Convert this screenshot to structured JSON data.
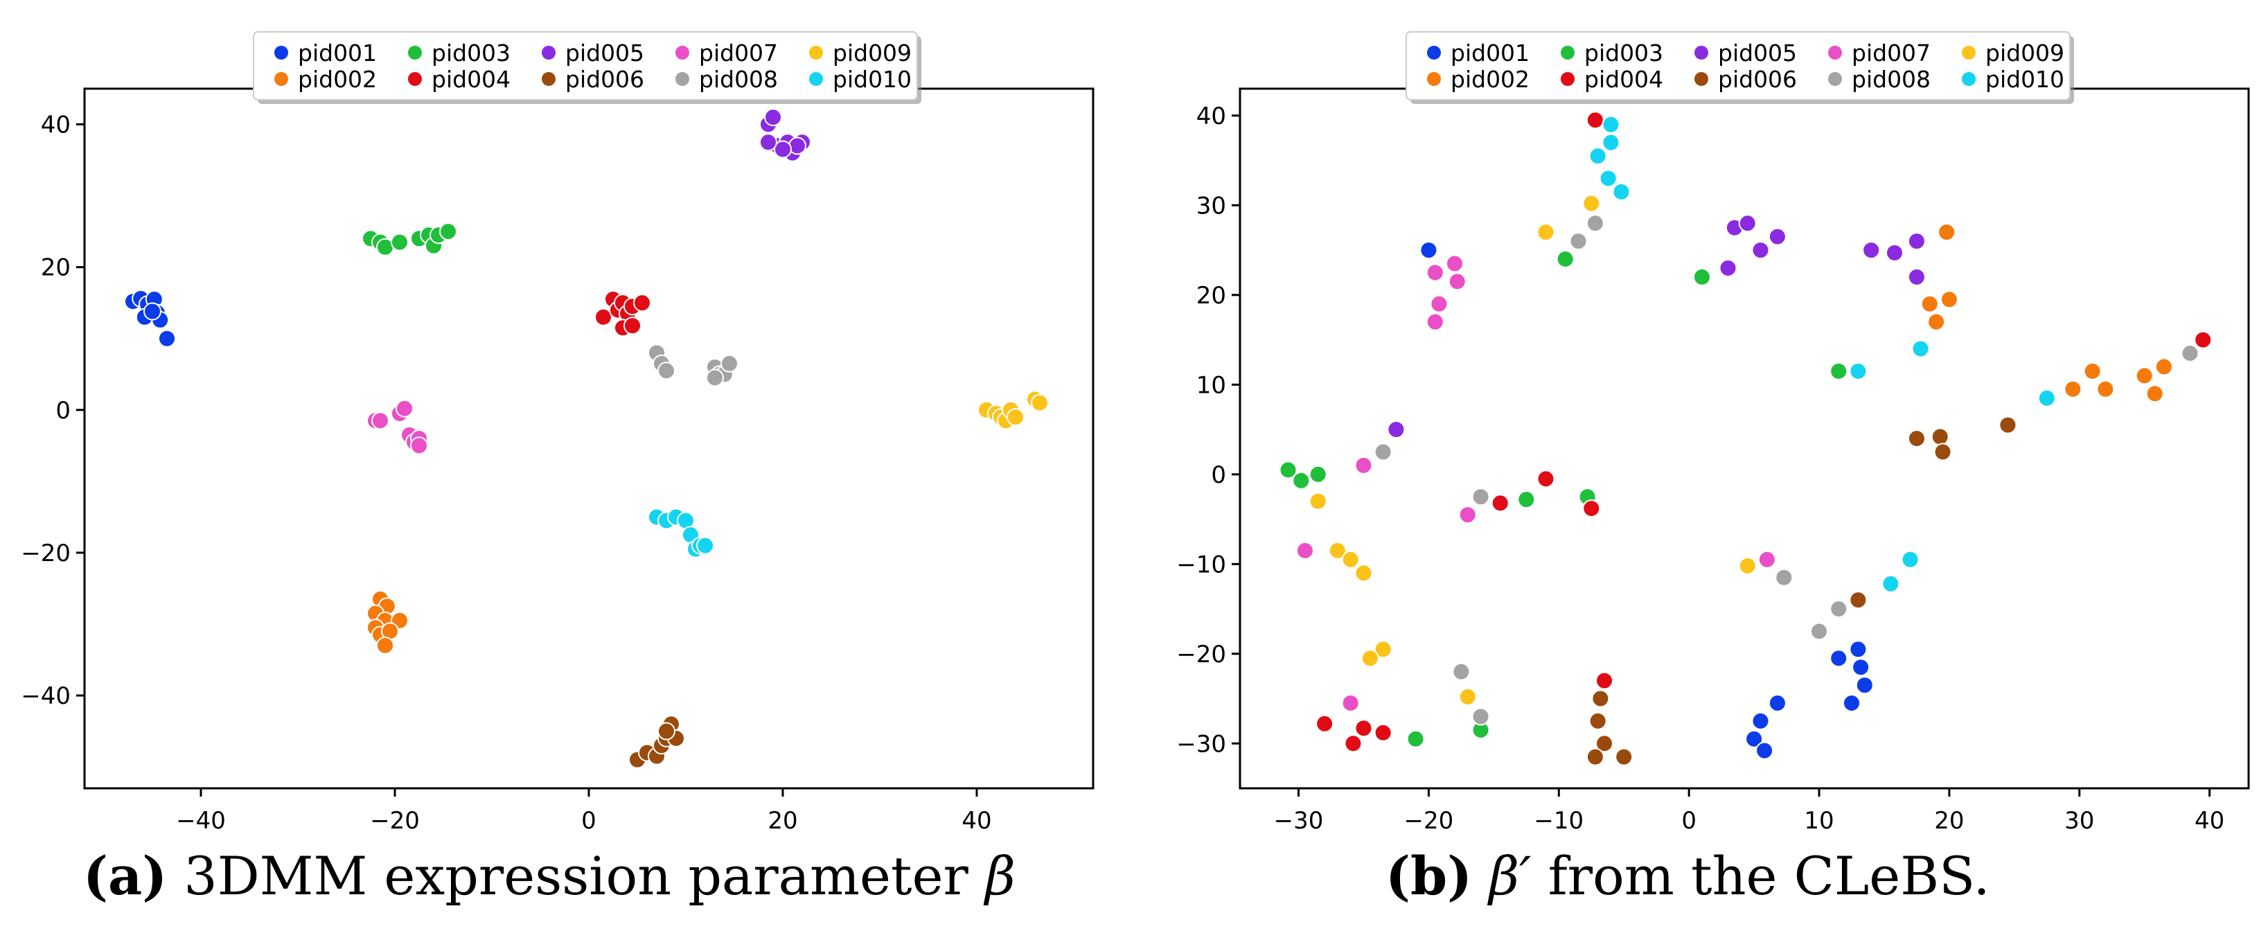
{
  "legend_entries": [
    "pid001",
    "pid002",
    "pid003",
    "pid004",
    "pid005",
    "pid006",
    "pid007",
    "pid008",
    "pid009",
    "pid010"
  ],
  "colors": {
    "pid001": "#0b3ce8",
    "pid002": "#f47a0c",
    "pid003": "#1fbf3a",
    "pid004": "#e00b14",
    "pid005": "#8a2be2",
    "pid006": "#9a4a0c",
    "pid007": "#ea4fc7",
    "pid008": "#a3a3a3",
    "pid009": "#fbc31a",
    "pid010": "#14d4f2"
  },
  "captions": {
    "a": {
      "tag": "(a)",
      "text": "3DMM expression parameter ",
      "symbol": "β"
    },
    "b": {
      "tag": "(b)",
      "symbol": "β′",
      "text": " from the CLeBS."
    }
  },
  "chart_data": [
    {
      "type": "scatter",
      "title": "",
      "xlabel": "",
      "ylabel": "",
      "xlim": [
        -52,
        52
      ],
      "ylim": [
        -53,
        45
      ],
      "xticks": [
        -40,
        -20,
        0,
        20,
        40
      ],
      "yticks": [
        -40,
        -20,
        0,
        20,
        40
      ],
      "legend_position": "top-center",
      "grid": false,
      "series": [
        {
          "name": "pid001",
          "points": [
            [
              -47,
              15.2
            ],
            [
              -46.2,
              15.6
            ],
            [
              -45.5,
              14.8
            ],
            [
              -44.8,
              15.5
            ],
            [
              -45.8,
              13
            ],
            [
              -44.5,
              13.6
            ],
            [
              -44.2,
              12.6
            ],
            [
              -43.5,
              10
            ],
            [
              -45,
              13.8
            ]
          ]
        },
        {
          "name": "pid002",
          "points": [
            [
              -21.5,
              -26.5
            ],
            [
              -20.8,
              -27.5
            ],
            [
              -22,
              -28.5
            ],
            [
              -21,
              -29.5
            ],
            [
              -19.5,
              -29.5
            ],
            [
              -22,
              -30.5
            ],
            [
              -21.5,
              -31.5
            ],
            [
              -20.5,
              -31
            ],
            [
              -21,
              -33
            ]
          ]
        },
        {
          "name": "pid003",
          "points": [
            [
              -22.5,
              24
            ],
            [
              -21.5,
              23.5
            ],
            [
              -21,
              22.8
            ],
            [
              -19.5,
              23.5
            ],
            [
              -17.5,
              24
            ],
            [
              -16.5,
              24.5
            ],
            [
              -16,
              23
            ],
            [
              -15.5,
              24.5
            ],
            [
              -14.5,
              25
            ]
          ]
        },
        {
          "name": "pid004",
          "points": [
            [
              1.5,
              13
            ],
            [
              2.5,
              15.5
            ],
            [
              3,
              14
            ],
            [
              3.5,
              15
            ],
            [
              4,
              13.5
            ],
            [
              4.5,
              14.5
            ],
            [
              5.5,
              15
            ],
            [
              3.5,
              11.5
            ],
            [
              4.5,
              11.8
            ]
          ]
        },
        {
          "name": "pid005",
          "points": [
            [
              18.5,
              40
            ],
            [
              19,
              41
            ],
            [
              19.5,
              37
            ],
            [
              20.5,
              37.5
            ],
            [
              21,
              36
            ],
            [
              22,
              37.5
            ],
            [
              21.5,
              37
            ],
            [
              20,
              36.5
            ],
            [
              18.5,
              37.5
            ]
          ]
        },
        {
          "name": "pid006",
          "points": [
            [
              5,
              -49
            ],
            [
              6,
              -48
            ],
            [
              7,
              -48.5
            ],
            [
              7.5,
              -47
            ],
            [
              8,
              -46
            ],
            [
              8.5,
              -44
            ],
            [
              9,
              -46
            ],
            [
              8,
              -45
            ]
          ]
        },
        {
          "name": "pid007",
          "points": [
            [
              -22,
              -1.5
            ],
            [
              -21.5,
              -1.5
            ],
            [
              -19.5,
              -0.5
            ],
            [
              -19,
              0.2
            ],
            [
              -18.5,
              -3.5
            ],
            [
              -18,
              -4.5
            ],
            [
              -17.5,
              -4
            ],
            [
              -17.5,
              -5
            ]
          ]
        },
        {
          "name": "pid008",
          "points": [
            [
              7,
              8
            ],
            [
              7.5,
              6.5
            ],
            [
              8,
              5.5
            ],
            [
              13,
              6
            ],
            [
              13.5,
              5
            ],
            [
              14,
              5
            ],
            [
              14.5,
              6.5
            ],
            [
              13,
              4.5
            ]
          ]
        },
        {
          "name": "pid009",
          "points": [
            [
              41,
              0
            ],
            [
              42,
              -0.5
            ],
            [
              42.5,
              -1
            ],
            [
              43,
              -1.5
            ],
            [
              43.5,
              0
            ],
            [
              44,
              -1
            ],
            [
              46,
              1.5
            ],
            [
              46.5,
              1
            ]
          ]
        },
        {
          "name": "pid010",
          "points": [
            [
              7,
              -15
            ],
            [
              8,
              -15.5
            ],
            [
              9,
              -15
            ],
            [
              10,
              -15.5
            ],
            [
              10.5,
              -17.5
            ],
            [
              11,
              -19.5
            ],
            [
              11.5,
              -19
            ],
            [
              12,
              -19
            ]
          ]
        }
      ]
    },
    {
      "type": "scatter",
      "title": "",
      "xlabel": "",
      "ylabel": "",
      "xlim": [
        -34.5,
        43
      ],
      "ylim": [
        -35,
        43
      ],
      "xticks": [
        -30,
        -20,
        -10,
        0,
        10,
        20,
        30,
        40
      ],
      "yticks": [
        -30,
        -20,
        -10,
        0,
        10,
        20,
        30,
        40
      ],
      "legend_position": "top-center",
      "grid": false,
      "series": [
        {
          "name": "pid001",
          "points": [
            [
              -20,
              25
            ],
            [
              11.5,
              -20.5
            ],
            [
              12.5,
              -25.5
            ],
            [
              13,
              -19.5
            ],
            [
              13.2,
              -21.5
            ],
            [
              13.5,
              -23.5
            ],
            [
              5,
              -29.5
            ],
            [
              5.5,
              -27.5
            ],
            [
              5.8,
              -30.8
            ],
            [
              6.8,
              -25.5
            ]
          ]
        },
        {
          "name": "pid002",
          "points": [
            [
              19.8,
              27
            ],
            [
              18.5,
              19
            ],
            [
              19,
              17
            ],
            [
              20,
              19.5
            ],
            [
              29.5,
              9.5
            ],
            [
              31,
              11.5
            ],
            [
              32,
              9.5
            ],
            [
              35,
              11
            ],
            [
              35.8,
              9
            ],
            [
              36.5,
              12
            ]
          ]
        },
        {
          "name": "pid003",
          "points": [
            [
              -30.8,
              0.5
            ],
            [
              -29.8,
              -0.7
            ],
            [
              -28.5,
              0
            ],
            [
              -9.5,
              24
            ],
            [
              1,
              22
            ],
            [
              11.5,
              11.5
            ],
            [
              -12.5,
              -2.8
            ],
            [
              -7.8,
              -2.5
            ],
            [
              -16,
              -28.5
            ],
            [
              -21,
              -29.5
            ]
          ]
        },
        {
          "name": "pid004",
          "points": [
            [
              -7.2,
              39.5
            ],
            [
              -11,
              -0.5
            ],
            [
              -14.5,
              -3.2
            ],
            [
              -7.5,
              -3.8
            ],
            [
              39.5,
              15
            ],
            [
              -6.5,
              -23
            ],
            [
              -28,
              -27.8
            ],
            [
              -25,
              -28.3
            ],
            [
              -23.5,
              -28.8
            ],
            [
              -25.8,
              -30
            ]
          ]
        },
        {
          "name": "pid005",
          "points": [
            [
              3,
              23
            ],
            [
              3.5,
              27.5
            ],
            [
              4.5,
              28
            ],
            [
              5.5,
              25
            ],
            [
              6.8,
              26.5
            ],
            [
              14,
              25
            ],
            [
              15.8,
              24.7
            ],
            [
              17.5,
              26
            ],
            [
              17.5,
              22
            ],
            [
              -22.5,
              5
            ]
          ]
        },
        {
          "name": "pid006",
          "points": [
            [
              17.5,
              4
            ],
            [
              19.3,
              4.2
            ],
            [
              19.5,
              2.5
            ],
            [
              24.5,
              5.5
            ],
            [
              13,
              -14
            ],
            [
              -7,
              -27.5
            ],
            [
              -6.8,
              -25
            ],
            [
              -6.5,
              -30
            ],
            [
              -5,
              -31.5
            ],
            [
              -7.2,
              -31.5
            ]
          ]
        },
        {
          "name": "pid007",
          "points": [
            [
              -19.5,
              22.5
            ],
            [
              -18,
              23.5
            ],
            [
              -17.8,
              21.5
            ],
            [
              -19.2,
              19
            ],
            [
              -19.5,
              17
            ],
            [
              -25,
              1
            ],
            [
              -17,
              -4.5
            ],
            [
              -29.5,
              -8.5
            ],
            [
              6,
              -9.5
            ],
            [
              -26,
              -25.5
            ]
          ]
        },
        {
          "name": "pid008",
          "points": [
            [
              -8.5,
              26
            ],
            [
              -7.2,
              28
            ],
            [
              -23.5,
              2.5
            ],
            [
              -16,
              -2.5
            ],
            [
              7.3,
              -11.5
            ],
            [
              10,
              -17.5
            ],
            [
              11.5,
              -15
            ],
            [
              -17.5,
              -22
            ],
            [
              -16,
              -27
            ],
            [
              38.5,
              13.5
            ]
          ]
        },
        {
          "name": "pid009",
          "points": [
            [
              -11,
              27
            ],
            [
              -7.5,
              30.2
            ],
            [
              -28.5,
              -3
            ],
            [
              -27,
              -8.5
            ],
            [
              -26,
              -9.5
            ],
            [
              -25,
              -11
            ],
            [
              4.5,
              -10.2
            ],
            [
              -23.5,
              -19.5
            ],
            [
              -24.5,
              -20.5
            ],
            [
              -17,
              -24.8
            ]
          ]
        },
        {
          "name": "pid010",
          "points": [
            [
              -6,
              39
            ],
            [
              -7,
              35.5
            ],
            [
              -6,
              37
            ],
            [
              -6.2,
              33
            ],
            [
              -5.2,
              31.5
            ],
            [
              17.8,
              14
            ],
            [
              13,
              11.5
            ],
            [
              27.5,
              8.5
            ],
            [
              17,
              -9.5
            ],
            [
              15.5,
              -12.2
            ]
          ]
        }
      ]
    }
  ]
}
